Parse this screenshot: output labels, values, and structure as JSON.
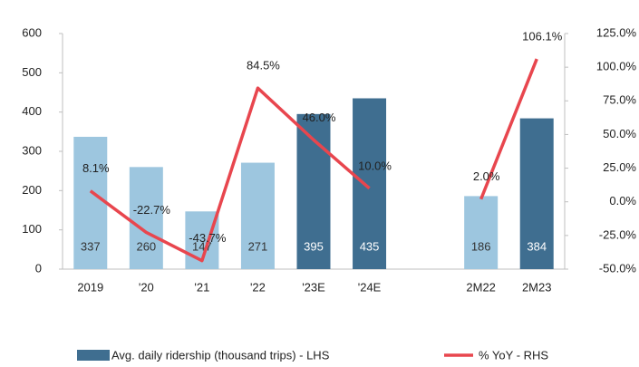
{
  "chart_data": {
    "type": "combo",
    "categories": [
      "2019",
      "'20",
      "'21",
      "'22",
      "'23E",
      "'24E",
      null,
      "2M22",
      "2M23"
    ],
    "series": [
      {
        "name": "Avg. daily ridership (thousand trips) - LHS",
        "type": "bar",
        "color": "#3f6e90",
        "colors": [
          "#9dc6df",
          "#9dc6df",
          "#9dc6df",
          "#9dc6df",
          "#3f6e90",
          "#3f6e90",
          null,
          "#9dc6df",
          "#3f6e90"
        ],
        "values": [
          337,
          260,
          147,
          271,
          395,
          435,
          null,
          186,
          384
        ]
      },
      {
        "name": "% YoY - RHS",
        "type": "line",
        "color": "#e8464e",
        "axis": "y2",
        "values": [
          8.1,
          -22.7,
          -43.7,
          84.5,
          46.0,
          10.0,
          null,
          2.0,
          106.1
        ],
        "value_labels": [
          "8.1%",
          "-22.7%",
          "-43.7%",
          "84.5%",
          "46.0%",
          "10.0%",
          null,
          "2.0%",
          "106.1%"
        ]
      }
    ],
    "ylim": [
      0,
      600
    ],
    "yticks": [
      0,
      100,
      200,
      300,
      400,
      500,
      600
    ],
    "y2lim": [
      -50,
      125
    ],
    "y2ticks": [
      {
        "value": -50,
        "label": "-50.0%"
      },
      {
        "value": -25,
        "label": "-25.0%"
      },
      {
        "value": 0,
        "label": "0.0%"
      },
      {
        "value": 25,
        "label": "25.0%"
      },
      {
        "value": 50,
        "label": "50.0%"
      },
      {
        "value": 75,
        "label": "75.0%"
      },
      {
        "value": 100,
        "label": "100.0%"
      },
      {
        "value": 125,
        "label": "125.0%"
      }
    ],
    "legend": "bottom"
  }
}
